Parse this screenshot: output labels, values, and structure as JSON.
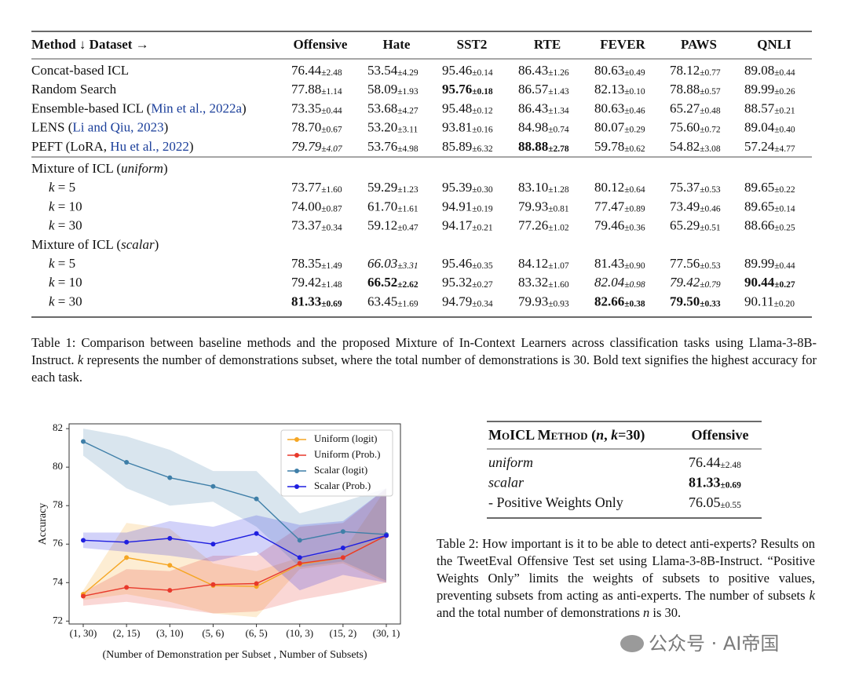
{
  "table1": {
    "header": "Method ↓ Dataset →",
    "columns": [
      "Offensive",
      "Hate",
      "SST2",
      "RTE",
      "FEVER",
      "PAWS",
      "QNLI"
    ],
    "sections": [
      {
        "rows": [
          {
            "label": [
              {
                "t": "Concat-based ICL"
              }
            ],
            "cells": [
              [
                "76.44",
                "±2.48"
              ],
              [
                "53.54",
                "±4.29"
              ],
              [
                "95.46",
                "±0.14"
              ],
              [
                "86.43",
                "±1.26"
              ],
              [
                "80.63",
                "±0.49"
              ],
              [
                "78.12",
                "±0.77"
              ],
              [
                "89.08",
                "±0.44"
              ]
            ]
          },
          {
            "label": [
              {
                "t": "Random Search"
              }
            ],
            "cells": [
              [
                "77.88",
                "±1.14"
              ],
              [
                "58.09",
                "±1.93"
              ],
              [
                "95.76",
                "±0.18",
                "b"
              ],
              [
                "86.57",
                "±1.43"
              ],
              [
                "82.13",
                "±0.10"
              ],
              [
                "78.88",
                "±0.57"
              ],
              [
                "89.99",
                "±0.26"
              ]
            ]
          },
          {
            "label": [
              {
                "t": "Ensemble-based ICL ("
              },
              {
                "t": "Min et al., 2022a",
                "st": "cite"
              },
              {
                "t": ")"
              }
            ],
            "cells": [
              [
                "73.35",
                "±0.44"
              ],
              [
                "53.68",
                "±4.27"
              ],
              [
                "95.48",
                "±0.12"
              ],
              [
                "86.43",
                "±1.34"
              ],
              [
                "80.63",
                "±0.46"
              ],
              [
                "65.27",
                "±0.48"
              ],
              [
                "88.57",
                "±0.21"
              ]
            ]
          },
          {
            "label": [
              {
                "t": "LENS ("
              },
              {
                "t": "Li and Qiu, 2023",
                "st": "cite"
              },
              {
                "t": ")"
              }
            ],
            "cells": [
              [
                "78.70",
                "±0.67"
              ],
              [
                "53.20",
                "±3.11"
              ],
              [
                "93.81",
                "±0.16"
              ],
              [
                "84.98",
                "±0.74"
              ],
              [
                "80.07",
                "±0.29"
              ],
              [
                "75.60",
                "±0.72"
              ],
              [
                "89.04",
                "±0.40"
              ]
            ]
          },
          {
            "label": [
              {
                "t": "PEFT (LoRA, "
              },
              {
                "t": "Hu et al., 2022",
                "st": "cite"
              },
              {
                "t": ")"
              }
            ],
            "cells": [
              [
                "79.79",
                "±4.07",
                "i"
              ],
              [
                "53.76",
                "±4.98"
              ],
              [
                "85.89",
                "±6.32"
              ],
              [
                "88.88",
                "±2.78",
                "b"
              ],
              [
                "59.78",
                "±0.62"
              ],
              [
                "54.82",
                "±3.08"
              ],
              [
                "57.24",
                "±4.77"
              ]
            ]
          }
        ]
      },
      {
        "rows": [
          {
            "label": [
              {
                "t": "Mixture of ICL ("
              },
              {
                "t": "uniform",
                "st": "i"
              },
              {
                "t": ")"
              }
            ]
          },
          {
            "label": [
              {
                "t": "k",
                "st": "i"
              },
              {
                "t": " = 5"
              }
            ],
            "indent": true,
            "cells": [
              [
                "73.77",
                "±1.60"
              ],
              [
                "59.29",
                "±1.23"
              ],
              [
                "95.39",
                "±0.30"
              ],
              [
                "83.10",
                "±1.28"
              ],
              [
                "80.12",
                "±0.64"
              ],
              [
                "75.37",
                "±0.53"
              ],
              [
                "89.65",
                "±0.22"
              ]
            ]
          },
          {
            "label": [
              {
                "t": "k",
                "st": "i"
              },
              {
                "t": " = 10"
              }
            ],
            "indent": true,
            "cells": [
              [
                "74.00",
                "±0.87"
              ],
              [
                "61.70",
                "±1.61"
              ],
              [
                "94.91",
                "±0.19"
              ],
              [
                "79.93",
                "±0.81"
              ],
              [
                "77.47",
                "±0.89"
              ],
              [
                "73.49",
                "±0.46"
              ],
              [
                "89.65",
                "±0.14"
              ]
            ]
          },
          {
            "label": [
              {
                "t": "k",
                "st": "i"
              },
              {
                "t": " = 30"
              }
            ],
            "indent": true,
            "cells": [
              [
                "73.37",
                "±0.34"
              ],
              [
                "59.12",
                "±0.47"
              ],
              [
                "94.17",
                "±0.21"
              ],
              [
                "77.26",
                "±1.02"
              ],
              [
                "79.46",
                "±0.36"
              ],
              [
                "65.29",
                "±0.51"
              ],
              [
                "88.66",
                "±0.25"
              ]
            ]
          },
          {
            "label": [
              {
                "t": "Mixture of ICL ("
              },
              {
                "t": "scalar",
                "st": "i"
              },
              {
                "t": ")"
              }
            ]
          },
          {
            "label": [
              {
                "t": "k",
                "st": "i"
              },
              {
                "t": " = 5"
              }
            ],
            "indent": true,
            "cells": [
              [
                "78.35",
                "±1.49"
              ],
              [
                "66.03",
                "±3.31",
                "i"
              ],
              [
                "95.46",
                "±0.35"
              ],
              [
                "84.12",
                "±1.07"
              ],
              [
                "81.43",
                "±0.90"
              ],
              [
                "77.56",
                "±0.53"
              ],
              [
                "89.99",
                "±0.44"
              ]
            ]
          },
          {
            "label": [
              {
                "t": "k",
                "st": "i"
              },
              {
                "t": " = 10"
              }
            ],
            "indent": true,
            "cells": [
              [
                "79.42",
                "±1.48"
              ],
              [
                "66.52",
                "±2.62",
                "b"
              ],
              [
                "95.32",
                "±0.27"
              ],
              [
                "83.32",
                "±1.60"
              ],
              [
                "82.04",
                "±0.98",
                "i"
              ],
              [
                "79.42",
                "±0.79",
                "i"
              ],
              [
                "90.44",
                "±0.27",
                "b"
              ]
            ]
          },
          {
            "label": [
              {
                "t": "k",
                "st": "i"
              },
              {
                "t": " = 30"
              }
            ],
            "indent": true,
            "cells": [
              [
                "81.33",
                "±0.69",
                "b"
              ],
              [
                "63.45",
                "±1.69"
              ],
              [
                "94.79",
                "±0.34"
              ],
              [
                "79.93",
                "±0.93"
              ],
              [
                "82.66",
                "±0.38",
                "b"
              ],
              [
                "79.50",
                "±0.33",
                "b"
              ],
              [
                "90.11",
                "±0.20"
              ]
            ]
          }
        ]
      }
    ],
    "caption": [
      {
        "t": "Table 1: Comparison between baseline methods and the proposed Mixture of In-Context Learners across classification tasks using Llama-3-8B-Instruct. "
      },
      {
        "t": "k",
        "st": "i"
      },
      {
        "t": " represents the number of demonstrations subset, where the total number of demonstrations is 30. Bold text signifies the highest accuracy for each task."
      }
    ]
  },
  "chart_data": {
    "type": "line",
    "x_label": "(Number of Demonstration per Subset , Number of Subsets)",
    "y_label": "Accuracy",
    "categories": [
      "(1, 30)",
      "(2, 15)",
      "(3, 10)",
      "(5, 6)",
      "(6, 5)",
      "(10, 3)",
      "(15, 2)",
      "(30, 1)"
    ],
    "ylim": [
      71.85,
      82.25
    ],
    "yticks": [
      72,
      74,
      76,
      78,
      80,
      82
    ],
    "legend": "upper right",
    "series": [
      {
        "name": "Uniform (logit)",
        "color": "#f5a623",
        "values": [
          73.4,
          75.3,
          74.9,
          73.85,
          73.8,
          74.95,
          75.3,
          76.45
        ],
        "upper": [
          73.6,
          77.1,
          76.8,
          75.0,
          74.6,
          75.3,
          75.6,
          78.9
        ],
        "lower": [
          73.1,
          73.4,
          73.0,
          72.4,
          72.2,
          74.7,
          75.0,
          74.0
        ]
      },
      {
        "name": "Uniform (Prob.)",
        "color": "#e8392b",
        "values": [
          73.3,
          73.75,
          73.6,
          73.9,
          73.95,
          75.0,
          75.3,
          76.45
        ],
        "upper": [
          73.5,
          74.7,
          74.6,
          75.4,
          75.4,
          76.9,
          77.1,
          78.9
        ],
        "lower": [
          72.8,
          73.0,
          72.7,
          72.4,
          72.5,
          73.1,
          73.5,
          74.0
        ]
      },
      {
        "name": "Scalar (logit)",
        "color": "#3f7fa8",
        "values": [
          81.33,
          80.25,
          79.45,
          79.0,
          78.35,
          76.2,
          76.65,
          76.5
        ],
        "upper": [
          82.0,
          81.6,
          80.9,
          79.8,
          79.8,
          77.6,
          78.2,
          78.9
        ],
        "lower": [
          80.6,
          78.9,
          78.0,
          78.2,
          76.9,
          74.8,
          75.1,
          74.1
        ]
      },
      {
        "name": "Scalar (Prob.)",
        "color": "#1f1fe0",
        "values": [
          76.2,
          76.1,
          76.3,
          76.0,
          76.55,
          75.3,
          75.8,
          76.45
        ],
        "upper": [
          76.6,
          76.6,
          77.2,
          76.9,
          77.5,
          77.0,
          77.2,
          78.9
        ],
        "lower": [
          75.8,
          75.6,
          75.4,
          75.1,
          75.6,
          73.6,
          74.4,
          74.0
        ]
      }
    ]
  },
  "table2": {
    "header": [
      {
        "t": "MoICL Method",
        "st": "sc"
      },
      {
        "t": " ("
      },
      {
        "t": "n",
        "st": "i"
      },
      {
        "t": ", "
      },
      {
        "t": "k",
        "st": "i"
      },
      {
        "t": "=30)"
      }
    ],
    "column": "Offensive",
    "rows": [
      {
        "label": [
          {
            "t": "uniform",
            "st": "i"
          }
        ],
        "cell": [
          "76.44",
          "±2.48"
        ]
      },
      {
        "label": [
          {
            "t": "scalar",
            "st": "i"
          }
        ],
        "cell": [
          "81.33",
          "±0.69",
          "b"
        ]
      },
      {
        "label": [
          {
            "t": "- Positive Weights Only"
          }
        ],
        "cell": [
          "76.05",
          "±0.55"
        ]
      }
    ],
    "caption": [
      {
        "t": "Table 2: How important is it to be able to detect anti-experts? Results on the TweetEval Offensive Test set using Llama-3-8B-Instruct. “Positive Weights Only” limits the weights of subsets to positive values, preventing subsets from acting as anti-experts. The number of subsets "
      },
      {
        "t": "k",
        "st": "i"
      },
      {
        "t": " and the total number of demonstrations "
      },
      {
        "t": "n",
        "st": "i"
      },
      {
        "t": " is 30."
      }
    ]
  },
  "watermark": "公众号 · AI帝国"
}
